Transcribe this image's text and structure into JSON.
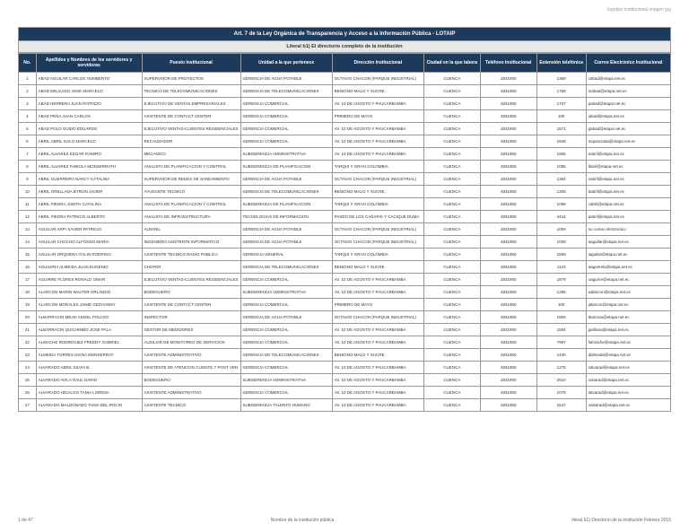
{
  "logo_placeholder": "logotipo institucional imagen jpg",
  "title": "Art. 7 de la Ley Orgánica de Transparencia y Acceso a la Información Pública - LOTAIP",
  "subtitle": "Literal b1) El directorio completo de la institución",
  "columns": [
    "No.",
    "Apellidos y Nombres de los servidores y servidoras",
    "Puesto Institucional",
    "Unidad a la que pertenece",
    "Dirección Institucional",
    "Ciudad en la que labora",
    "Teléfono Institucional",
    "Extensión telefónica",
    "Correo Electrónico Institucional"
  ],
  "rows": [
    [
      "1",
      "ABAD AGUILAR CARLOS HUMBERTO",
      "SUPERVISOR DE PROYECTOS",
      "GERENCIA DE AGUA POTABLE",
      "OCTAVIO CHACON (PARQUE INDUSTRIAL)",
      "CUENCA",
      "2831900",
      "1369",
      "cabad@etapa.net.ec"
    ],
    [
      "2",
      "ABAD DELGADO JOSE MARCELO",
      "TECNICO DE TELECOMUNICACIONES",
      "GERENCIA DE TELECOMUNICACIONES",
      "BENIGNO MALO Y SUCRE",
      "CUENCA",
      "2831900",
      "1769",
      "mabad@etapa.net.ec"
    ],
    [
      "3",
      "ABAD HERRERA JUAN PATRICIO",
      "EJECUTIVO DE VENTAS EMPRESARIALES",
      "GERENCIA COMERCIAL",
      "AV. 10 DE AGOSTO Y PAUCARBAMBA",
      "CUENCA",
      "2831900",
      "1707",
      "pabad@etapa.net.ec"
    ],
    [
      "4",
      "ABAD PEÑA JUAN CARLOS",
      "ASISTENTE DE CONTACT CENTER",
      "GERENCIA COMERCIAL",
      "PRIMERO DE MAYO",
      "CUENCA",
      "2831900",
      "100",
      "jabad@etapa.net.ec"
    ],
    [
      "5",
      "ABAD POLO GUIDO EDUARDO",
      "EJECUTIVO VENTAS-CLIENTES RESIDENCIALES",
      "GERENCIA COMERCIAL",
      "AV. 10 DE AGOSTO Y PAUCARBAMBA",
      "CUENCA",
      "2831900",
      "1571",
      "gabad@etapa.net.ec"
    ],
    [
      "6",
      "ABRIL ABRIL GALO MARCELO",
      "RECAUDADOR",
      "GERENCIA COMERCIAL",
      "AV. 10 DE AGOSTO Y PAUCARBAMBA",
      "CUENCA",
      "2831900",
      "1646",
      "mqueszada@etapa.net.ec"
    ],
    [
      "7",
      "ABRIL ALVAREZ EDGAR RAMIRO",
      "MECANICO",
      "SUBGERENCIA ADMINISTRATIVA",
      "AV. 10 DE AGOSTO Y PAUCARBAMBA",
      "CUENCA",
      "2831900",
      "1865",
      "eabril@etapa.net.ec"
    ],
    [
      "8",
      "ABRIL ALVAREZ FABIOLA MONSERRATH",
      "ANALISTA DE PLANIFICACION Y CONTROL",
      "SUBGERENCIA DE PLANIFICACION",
      "TARQUI Y GRAN COLOMBIA",
      "CUENCA",
      "2831900",
      "1085",
      "fabril@etapa.net.ec"
    ],
    [
      "9",
      "ABRIL GUERRERO NANCY CATALINA",
      "SUPERVISOR DE REDES DE SANEAMIENTO",
      "GERENCIA DE AGUA POTABLE",
      "OCTAVIO CHACON (PARQUE INDUSTRIAL)",
      "CUENCA",
      "2831900",
      "1384",
      "nabril@etapa.net.ec"
    ],
    [
      "10",
      "ABRIL ORELLANA BYRON JAVIER",
      "AYUDANTE TECNICO",
      "GERENCIA DE TELECOMUNICACIONES",
      "BENIGNO MALO Y SUCRE",
      "CUENCA",
      "2831900",
      "1309",
      "babril@etapa.net.ec"
    ],
    [
      "11",
      "ABRIL PIEDRA JUDITH CATALINA",
      "ANALISTA DE PLANIFICACION Y CONTROL",
      "SUBGERENCIA DE PLANIFICACION",
      "TARQUI Y GRAN COLOMBIA",
      "CUENCA",
      "2831900",
      "1098",
      "cabril@etapa.net.ec"
    ],
    [
      "12",
      "ABRIL PIEDRA PATRICIO ALBERTO",
      "ANALISTA DE INFRAESTRUCTURA",
      "TECNOLOGIAS DE INFORMACION",
      "PASEO DE LOS CAÑARIS Y CACIQUE DUMA",
      "CUENCA",
      "2831900",
      "4444",
      "pabril@etapa.net.ec"
    ],
    [
      "13",
      "AGUILAR ARPI XAVIER PATRICIO",
      "ALBAÑIL",
      "GERENCIA DE AGUA POTABLE",
      "OCTAVIO CHACON (PARQUE INDUSTRIAL)",
      "CUENCA",
      "2831900",
      "1009",
      "no correo electronico"
    ],
    [
      "14",
      "AGUILAR CHOCHO ALFONSO MARIA",
      "INGENIERO ASISTENTE INFORMATICO",
      "GERENCIA DE AGUA POTABLE",
      "OCTAVIO CHACON (PARQUE INDUSTRIAL)",
      "CUENCA",
      "2831900",
      "1009",
      "aaguilar@etapa.net.ec"
    ],
    [
      "15",
      "AGUILAR ORQUERA ITALIN RODRIGO",
      "ASISTENTE TECNICO RADIO PUBLICA",
      "GERENCIA GENERAL",
      "TARQUI Y GRAN COLOMBIA",
      "CUENCA",
      "2831900",
      "1559",
      "iaguilar@etapa.net.ec"
    ],
    [
      "16",
      "AGUILERA ALMEIDA JUAN EUGENIO",
      "CHOFER",
      "GERENCIA DE TELECOMUNICACIONES",
      "BENIGNO MALO Y SUCRE",
      "CUENCA",
      "2831900",
      "1123",
      "aaguirrela@etapa.net.ec"
    ],
    [
      "17",
      "AGUIRRE FLORES RONALD OMAR",
      "EJECUTIVO VENTAS-CLIENTES RESIDENCIALES",
      "GERENCIA COMERCIAL",
      "AV. 10 DE AGOSTO Y PAUCARBAMBA",
      "CUENCA",
      "2831900",
      "1879",
      "oaguirre@etapa.net.ec"
    ],
    [
      "18",
      "ALARCON MARIN WALTER ORLANDO",
      "BODEGUERO",
      "SUBGERENCIA ADMINISTRATIVA",
      "AV. 10 DE AGOSTO Y PAUCARBAMBA",
      "CUENCA",
      "2831900",
      "1295",
      "walarcon@etapa.net.ec"
    ],
    [
      "19",
      "ALARCON MORALES JAIME GEOVANNY",
      "ASISTENTE DE CONTACT CENTER",
      "GERENCIA COMERCIAL",
      "PRIMERO DE MAYO",
      "CUENCA",
      "2831900",
      "100",
      "jalarcon@etapa.net.ec"
    ],
    [
      "20",
      "ALBARRACIN MEJIA ANGEL POLIVIO",
      "INSPECTOR",
      "GERENCIA DE AGUA POTABLE",
      "OCTAVIO CHACON (PARQUE INDUSTRIAL)",
      "CUENCA",
      "2831900",
      "1809",
      "tbarrosa@etapa.net.ec"
    ],
    [
      "21",
      "ALBARRACIN QUICHIMBO JOSE PALA",
      "GESTOR DE MEDIDORES",
      "GERENCIA COMERCIAL",
      "AV. 10 DE AGOSTO Y PAUCARBAMBA",
      "CUENCA",
      "2831900",
      "1594",
      "jpalbara@etapa.net.ec"
    ],
    [
      "22",
      "ALMACHE RODRIGUEZ FREDDY GABRIEL",
      "AUXILIAR DE MONITOREO DE SERVICIOS",
      "GERENCIA COMERCIAL",
      "AV. 10 DE AGOSTO Y PAUCARBAMBA",
      "CUENCA",
      "2831900",
      "7997",
      "falmache@etapa.net.ec"
    ],
    [
      "23",
      "ALMEIDA TORRES DIANA MONSERRAT",
      "ASISTENTE ADMINISTRATIVO",
      "GERENCIA DE TELECOMUNICACIONES",
      "BENIGNO MALO Y SUCRE",
      "CUENCA",
      "2831900",
      "1430",
      "dalmeida@etapa.net.ec"
    ],
    [
      "24",
      "ALVARADO ABRIL SILVIA B.",
      "ASISTENTE DE ATENCION CLIENTE Y POST VEN",
      "GERENCIA COMERCIAL",
      "AV. 10 DE AGOSTO Y PAUCARBAMBA",
      "CUENCA",
      "2831900",
      "1275",
      "salvarad@etapa.net.ec"
    ],
    [
      "25",
      "ALVARADO AVILA RAUL DARIO",
      "BODEGUERO",
      "SUBGERENCIA ADMINISTRATIVA",
      "AV. 10 DE AGOSTO Y PAUCARBAMBA",
      "CUENCA",
      "2831900",
      "2510",
      "ralvarad@etapa.net.ec"
    ],
    [
      "26",
      "ALVARADO HIDALGO TANIA LORENA",
      "ASISTENTE ADMINISTRATIVO",
      "GERENCIA COMERCIAL",
      "AV. 10 DE AGOSTO Y PAUCARBAMBA",
      "CUENCA",
      "2831900",
      "1075",
      "talvarad@etapa.net.ec"
    ],
    [
      "27",
      "ALVARADO MALDONADO TANIA DEL ROCIO",
      "ASISTENTE TECNICO",
      "SUBGERENCIA TALENTO HUMANO",
      "AV. 10 DE AGOSTO Y PAUCARBAMBA",
      "CUENCA",
      "2831900",
      "1547",
      "oalvarad@etapa.net.ec"
    ]
  ],
  "footer_left": "1 de 47",
  "footer_center": "Nombre de la institución pública",
  "footer_right": "literal b1) Directorio de la institución Febrero 2015",
  "colors": {
    "header_bg": "#1b3a5c",
    "header_fg": "#ffffff",
    "border": "#999999",
    "subtitle_bg": "#e8e8e8"
  }
}
